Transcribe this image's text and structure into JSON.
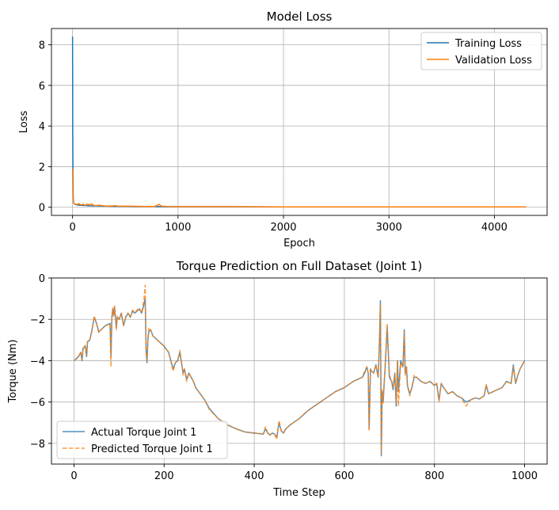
{
  "chart_data": [
    {
      "type": "line",
      "title": "Model Loss",
      "xlabel": "Epoch",
      "ylabel": "Loss",
      "xlim": [
        -200,
        4500
      ],
      "ylim": [
        -0.4,
        8.8
      ],
      "xticks": [
        0,
        1000,
        2000,
        3000,
        4000
      ],
      "yticks": [
        0,
        2,
        4,
        6,
        8
      ],
      "grid": true,
      "legend_position": "top-right",
      "colors": {
        "training": "#1f77b4",
        "validation": "#ff7f0e"
      },
      "series": [
        {
          "name": "Training Loss",
          "style": "solid",
          "x": [
            0,
            2,
            4,
            6,
            8,
            12,
            20,
            40,
            60,
            100,
            150,
            200,
            300,
            400,
            500,
            600,
            700,
            800,
            900,
            1000,
            1500,
            2000,
            2500,
            3000,
            3500,
            4000,
            4300
          ],
          "y": [
            8.4,
            3.5,
            1.5,
            0.6,
            0.3,
            0.2,
            0.15,
            0.12,
            0.1,
            0.09,
            0.08,
            0.07,
            0.06,
            0.05,
            0.05,
            0.04,
            0.04,
            0.04,
            0.03,
            0.03,
            0.03,
            0.02,
            0.02,
            0.02,
            0.02,
            0.02,
            0.02
          ]
        },
        {
          "name": "Validation Loss",
          "style": "solid",
          "x": [
            0,
            2,
            4,
            6,
            10,
            20,
            40,
            60,
            80,
            100,
            120,
            140,
            160,
            180,
            200,
            220,
            250,
            300,
            350,
            400,
            450,
            500,
            600,
            700,
            780,
            820,
            840,
            900,
            1000,
            1500,
            2000,
            2500,
            3000,
            3500,
            4000,
            4300
          ],
          "y": [
            1.9,
            1.3,
            0.5,
            0.3,
            0.22,
            0.16,
            0.14,
            0.18,
            0.12,
            0.15,
            0.1,
            0.16,
            0.12,
            0.17,
            0.1,
            0.08,
            0.1,
            0.07,
            0.06,
            0.08,
            0.05,
            0.06,
            0.05,
            0.04,
            0.04,
            0.15,
            0.06,
            0.04,
            0.03,
            0.03,
            0.02,
            0.02,
            0.02,
            0.02,
            0.02,
            0.02
          ]
        }
      ]
    },
    {
      "type": "line",
      "title": "Torque Prediction on Full Dataset (Joint 1)",
      "xlabel": "Time Step",
      "ylabel": "Torque (Nm)",
      "xlim": [
        -50,
        1050
      ],
      "ylim": [
        -9.0,
        0.0
      ],
      "xticks": [
        0,
        200,
        400,
        600,
        800,
        1000
      ],
      "yticks": [
        0,
        -2,
        -4,
        -6,
        -8
      ],
      "grid": true,
      "legend_position": "bottom-left",
      "colors": {
        "actual": "#1f77b4",
        "predicted": "#ff7f0e"
      },
      "series": [
        {
          "name": "Actual Torque Joint 1",
          "style": "solid",
          "x": [
            0,
            10,
            15,
            18,
            20,
            25,
            28,
            30,
            35,
            40,
            45,
            50,
            55,
            60,
            70,
            80,
            82,
            84,
            86,
            88,
            90,
            94,
            96,
            100,
            105,
            110,
            115,
            120,
            125,
            130,
            135,
            140,
            145,
            150,
            155,
            158,
            160,
            162,
            164,
            166,
            170,
            175,
            180,
            190,
            200,
            210,
            220,
            225,
            230,
            235,
            240,
            242,
            245,
            250,
            255,
            260,
            265,
            270,
            280,
            290,
            300,
            320,
            340,
            360,
            380,
            400,
            420,
            425,
            430,
            435,
            440,
            445,
            450,
            455,
            460,
            465,
            470,
            480,
            500,
            520,
            540,
            560,
            580,
            600,
            620,
            640,
            645,
            650,
            653,
            655,
            658,
            660,
            665,
            670,
            675,
            678,
            680,
            682,
            684,
            686,
            690,
            695,
            700,
            705,
            708,
            712,
            715,
            718,
            720,
            725,
            730,
            733,
            735,
            738,
            740,
            745,
            750,
            755,
            760,
            770,
            780,
            790,
            800,
            805,
            810,
            815,
            820,
            830,
            840,
            850,
            860,
            870,
            880,
            890,
            900,
            910,
            915,
            920,
            930,
            940,
            950,
            960,
            970,
            975,
            980,
            985,
            990,
            1000
          ],
          "y": [
            -4.0,
            -3.8,
            -3.6,
            -4.0,
            -3.4,
            -3.3,
            -3.8,
            -3.1,
            -3.0,
            -2.5,
            -1.9,
            -2.2,
            -2.6,
            -2.5,
            -2.3,
            -2.2,
            -3.8,
            -1.9,
            -1.5,
            -1.8,
            -1.4,
            -2.4,
            -1.9,
            -2.0,
            -1.7,
            -2.3,
            -1.9,
            -1.7,
            -1.9,
            -1.6,
            -1.7,
            -1.6,
            -1.5,
            -1.7,
            -1.3,
            -1.0,
            -3.5,
            -4.1,
            -3.0,
            -2.6,
            -2.5,
            -2.8,
            -2.9,
            -3.1,
            -3.3,
            -3.6,
            -4.4,
            -4.1,
            -4.0,
            -3.6,
            -4.3,
            -4.6,
            -4.4,
            -4.9,
            -4.6,
            -4.8,
            -5.0,
            -5.3,
            -5.6,
            -5.9,
            -6.3,
            -6.8,
            -7.1,
            -7.3,
            -7.45,
            -7.5,
            -7.55,
            -7.3,
            -7.5,
            -7.6,
            -7.5,
            -7.55,
            -7.7,
            -7.0,
            -7.4,
            -7.5,
            -7.3,
            -7.1,
            -6.8,
            -6.4,
            -6.1,
            -5.8,
            -5.5,
            -5.3,
            -5.0,
            -4.8,
            -4.6,
            -4.3,
            -4.6,
            -7.3,
            -4.4,
            -4.5,
            -4.6,
            -4.2,
            -4.8,
            -3.0,
            -1.1,
            -8.6,
            -5.5,
            -6.0,
            -4.5,
            -2.4,
            -4.8,
            -5.0,
            -5.4,
            -4.6,
            -6.2,
            -4.0,
            -5.5,
            -4.0,
            -4.3,
            -2.5,
            -4.6,
            -4.3,
            -5.2,
            -5.6,
            -5.3,
            -4.8,
            -4.8,
            -5.0,
            -5.1,
            -5.0,
            -5.2,
            -5.1,
            -5.9,
            -5.1,
            -5.3,
            -5.6,
            -5.5,
            -5.7,
            -5.8,
            -6.0,
            -5.9,
            -5.8,
            -5.85,
            -5.7,
            -5.2,
            -5.6,
            -5.5,
            -5.4,
            -5.3,
            -5.0,
            -5.1,
            -4.2,
            -5.1,
            -4.7,
            -4.4,
            -4.0
          ],
          "color": "#1f77b4"
        },
        {
          "name": "Predicted Torque Joint 1",
          "style": "dashed",
          "x": [
            0,
            10,
            15,
            18,
            20,
            25,
            28,
            30,
            35,
            40,
            45,
            50,
            55,
            60,
            70,
            80,
            82,
            84,
            86,
            88,
            90,
            94,
            96,
            100,
            105,
            110,
            115,
            120,
            125,
            130,
            135,
            140,
            145,
            150,
            155,
            158,
            160,
            162,
            164,
            166,
            170,
            175,
            180,
            190,
            200,
            210,
            220,
            225,
            230,
            235,
            240,
            242,
            245,
            250,
            255,
            260,
            265,
            270,
            280,
            290,
            300,
            320,
            340,
            360,
            380,
            400,
            420,
            425,
            430,
            435,
            440,
            445,
            450,
            455,
            460,
            465,
            470,
            480,
            500,
            520,
            540,
            560,
            580,
            600,
            620,
            640,
            645,
            650,
            653,
            655,
            658,
            660,
            665,
            670,
            675,
            678,
            680,
            682,
            684,
            686,
            690,
            695,
            700,
            705,
            708,
            712,
            715,
            718,
            720,
            725,
            730,
            733,
            735,
            738,
            740,
            745,
            750,
            755,
            760,
            770,
            780,
            790,
            800,
            805,
            810,
            815,
            820,
            830,
            840,
            850,
            860,
            870,
            880,
            890,
            900,
            910,
            915,
            920,
            930,
            940,
            950,
            960,
            970,
            975,
            980,
            985,
            990,
            1000
          ],
          "y": [
            -4.0,
            -3.85,
            -3.55,
            -3.95,
            -3.45,
            -3.25,
            -3.75,
            -3.05,
            -3.0,
            -2.55,
            -1.85,
            -2.2,
            -2.65,
            -2.5,
            -2.3,
            -2.25,
            -4.3,
            -2.0,
            -1.45,
            -1.85,
            -1.35,
            -2.5,
            -1.85,
            -2.05,
            -1.7,
            -2.3,
            -1.85,
            -1.7,
            -1.9,
            -1.55,
            -1.7,
            -1.55,
            -1.45,
            -1.7,
            -1.1,
            -0.35,
            -3.6,
            -4.0,
            -2.9,
            -2.4,
            -2.5,
            -2.8,
            -2.9,
            -3.1,
            -3.3,
            -3.6,
            -4.5,
            -4.1,
            -4.0,
            -3.5,
            -4.3,
            -4.7,
            -4.4,
            -5.0,
            -4.6,
            -4.8,
            -5.0,
            -5.3,
            -5.6,
            -5.9,
            -6.35,
            -6.8,
            -7.1,
            -7.3,
            -7.45,
            -7.5,
            -7.55,
            -7.2,
            -7.5,
            -7.6,
            -7.5,
            -7.55,
            -7.8,
            -6.9,
            -7.4,
            -7.5,
            -7.3,
            -7.1,
            -6.8,
            -6.4,
            -6.1,
            -5.8,
            -5.5,
            -5.3,
            -5.0,
            -4.8,
            -4.5,
            -4.3,
            -4.6,
            -7.4,
            -4.4,
            -4.5,
            -4.6,
            -4.2,
            -4.8,
            -3.1,
            -1.3,
            -8.5,
            -5.4,
            -6.1,
            -4.5,
            -2.2,
            -4.7,
            -5.0,
            -5.3,
            -4.6,
            -6.0,
            -4.0,
            -6.2,
            -4.1,
            -4.3,
            -2.6,
            -4.7,
            -4.3,
            -5.2,
            -5.7,
            -5.3,
            -4.7,
            -4.8,
            -5.0,
            -5.1,
            -5.0,
            -5.2,
            -5.1,
            -6.0,
            -5.1,
            -5.3,
            -5.6,
            -5.5,
            -5.7,
            -5.8,
            -6.2,
            -5.9,
            -5.8,
            -5.85,
            -5.7,
            -5.15,
            -5.6,
            -5.5,
            -5.4,
            -5.3,
            -5.0,
            -5.1,
            -4.3,
            -5.1,
            -4.7,
            -4.4,
            -4.0
          ],
          "color": "#ff7f0e"
        }
      ]
    }
  ]
}
